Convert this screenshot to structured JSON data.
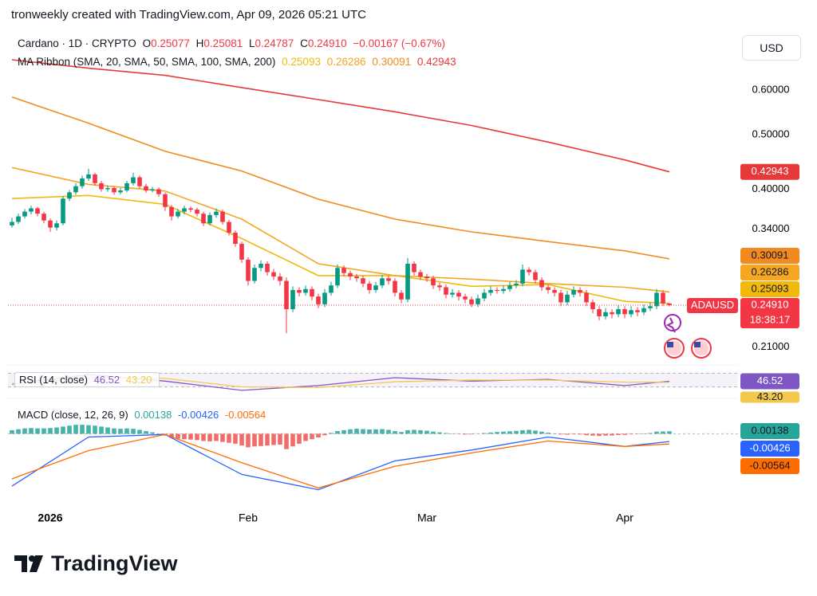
{
  "header": {
    "attribution": "tronweekly created with TradingView.com, Apr 09, 2026 05:21 UTC",
    "currency": "USD",
    "logo": "TradingView"
  },
  "chart_data": [
    {
      "type": "candlestick",
      "symbol": "Cardano · 1D · CRYPTO",
      "ohlc_labels": [
        "O",
        "H",
        "L",
        "C"
      ],
      "ohlc_values": [
        "0.25077",
        "0.25081",
        "0.24787",
        "0.24910"
      ],
      "change": "−0.00167 (−0.67%)",
      "ticker": "ADAUSD",
      "countdown": "18:38:17",
      "up_color": "#089981",
      "down_color": "#f23645",
      "log_scale": true,
      "ylim": [
        0.197,
        0.761
      ],
      "yticks": [
        {
          "value": 0.6,
          "label": "0.60000"
        },
        {
          "value": 0.5,
          "label": "0.50000"
        },
        {
          "value": 0.4,
          "label": "0.40000"
        },
        {
          "value": 0.34,
          "label": "0.34000"
        },
        {
          "value": 0.21,
          "label": "0.21000"
        }
      ],
      "xlim": [
        -0.625,
        113.75
      ],
      "xticks": [
        {
          "value": 6,
          "label": "2026"
        },
        {
          "value": 37,
          "label": "Feb"
        },
        {
          "value": 65,
          "label": "Mar"
        },
        {
          "value": 96,
          "label": "Apr"
        }
      ],
      "candles": [
        [
          0.345,
          0.356,
          0.342,
          0.35
        ],
        [
          0.35,
          0.362,
          0.347,
          0.358
        ],
        [
          0.358,
          0.369,
          0.355,
          0.365
        ],
        [
          0.365,
          0.374,
          0.361,
          0.37
        ],
        [
          0.37,
          0.372,
          0.358,
          0.362
        ],
        [
          0.362,
          0.365,
          0.348,
          0.352
        ],
        [
          0.352,
          0.355,
          0.336,
          0.342
        ],
        [
          0.342,
          0.352,
          0.338,
          0.348
        ],
        [
          0.348,
          0.389,
          0.345,
          0.385
        ],
        [
          0.385,
          0.399,
          0.381,
          0.395
        ],
        [
          0.395,
          0.41,
          0.391,
          0.405
        ],
        [
          0.405,
          0.423,
          0.401,
          0.418
        ],
        [
          0.418,
          0.435,
          0.414,
          0.425
        ],
        [
          0.425,
          0.428,
          0.406,
          0.41
        ],
        [
          0.41,
          0.414,
          0.396,
          0.4
        ],
        [
          0.4,
          0.406,
          0.396,
          0.402
        ],
        [
          0.402,
          0.405,
          0.391,
          0.395
        ],
        [
          0.395,
          0.402,
          0.392,
          0.398
        ],
        [
          0.398,
          0.414,
          0.395,
          0.41
        ],
        [
          0.41,
          0.428,
          0.406,
          0.42
        ],
        [
          0.42,
          0.423,
          0.401,
          0.405
        ],
        [
          0.405,
          0.409,
          0.394,
          0.398
        ],
        [
          0.398,
          0.404,
          0.395,
          0.4
        ],
        [
          0.4,
          0.403,
          0.388,
          0.392
        ],
        [
          0.392,
          0.395,
          0.366,
          0.372
        ],
        [
          0.372,
          0.375,
          0.352,
          0.358
        ],
        [
          0.358,
          0.369,
          0.355,
          0.365
        ],
        [
          0.365,
          0.374,
          0.361,
          0.37
        ],
        [
          0.37,
          0.373,
          0.364,
          0.368
        ],
        [
          0.368,
          0.371,
          0.358,
          0.362
        ],
        [
          0.362,
          0.365,
          0.344,
          0.348
        ],
        [
          0.348,
          0.364,
          0.345,
          0.36
        ],
        [
          0.36,
          0.37,
          0.356,
          0.365
        ],
        [
          0.365,
          0.368,
          0.346,
          0.35
        ],
        [
          0.35,
          0.353,
          0.331,
          0.335
        ],
        [
          0.335,
          0.338,
          0.316,
          0.32
        ],
        [
          0.32,
          0.323,
          0.296,
          0.3
        ],
        [
          0.3,
          0.303,
          0.27,
          0.275
        ],
        [
          0.275,
          0.294,
          0.272,
          0.29
        ],
        [
          0.29,
          0.299,
          0.286,
          0.295
        ],
        [
          0.295,
          0.298,
          0.281,
          0.285
        ],
        [
          0.285,
          0.289,
          0.276,
          0.28
        ],
        [
          0.28,
          0.284,
          0.27,
          0.275
        ],
        [
          0.275,
          0.279,
          0.222,
          0.245
        ],
        [
          0.245,
          0.269,
          0.242,
          0.265
        ],
        [
          0.265,
          0.268,
          0.258,
          0.262
        ],
        [
          0.262,
          0.27,
          0.259,
          0.266
        ],
        [
          0.266,
          0.269,
          0.254,
          0.258
        ],
        [
          0.258,
          0.261,
          0.246,
          0.25
        ],
        [
          0.25,
          0.266,
          0.247,
          0.262
        ],
        [
          0.262,
          0.274,
          0.259,
          0.27
        ],
        [
          0.27,
          0.294,
          0.267,
          0.29
        ],
        [
          0.29,
          0.293,
          0.28,
          0.284
        ],
        [
          0.284,
          0.287,
          0.276,
          0.28
        ],
        [
          0.28,
          0.283,
          0.274,
          0.278
        ],
        [
          0.278,
          0.281,
          0.268,
          0.272
        ],
        [
          0.272,
          0.275,
          0.261,
          0.265
        ],
        [
          0.265,
          0.274,
          0.262,
          0.27
        ],
        [
          0.27,
          0.282,
          0.267,
          0.278
        ],
        [
          0.278,
          0.281,
          0.271,
          0.275
        ],
        [
          0.275,
          0.278,
          0.258,
          0.262
        ],
        [
          0.262,
          0.265,
          0.251,
          0.255
        ],
        [
          0.255,
          0.302,
          0.252,
          0.295
        ],
        [
          0.295,
          0.298,
          0.281,
          0.285
        ],
        [
          0.285,
          0.288,
          0.276,
          0.28
        ],
        [
          0.28,
          0.283,
          0.274,
          0.278
        ],
        [
          0.278,
          0.281,
          0.266,
          0.27
        ],
        [
          0.27,
          0.273,
          0.264,
          0.268
        ],
        [
          0.268,
          0.271,
          0.256,
          0.26
        ],
        [
          0.26,
          0.266,
          0.257,
          0.262
        ],
        [
          0.262,
          0.265,
          0.254,
          0.258
        ],
        [
          0.258,
          0.261,
          0.251,
          0.255
        ],
        [
          0.255,
          0.258,
          0.247,
          0.25
        ],
        [
          0.25,
          0.26,
          0.247,
          0.256
        ],
        [
          0.256,
          0.266,
          0.253,
          0.262
        ],
        [
          0.262,
          0.269,
          0.259,
          0.265
        ],
        [
          0.265,
          0.268,
          0.261,
          0.264
        ],
        [
          0.264,
          0.27,
          0.261,
          0.266
        ],
        [
          0.266,
          0.274,
          0.263,
          0.27
        ],
        [
          0.27,
          0.276,
          0.267,
          0.272
        ],
        [
          0.272,
          0.294,
          0.269,
          0.288
        ],
        [
          0.288,
          0.291,
          0.281,
          0.285
        ],
        [
          0.285,
          0.288,
          0.272,
          0.276
        ],
        [
          0.276,
          0.279,
          0.264,
          0.268
        ],
        [
          0.268,
          0.271,
          0.261,
          0.265
        ],
        [
          0.265,
          0.268,
          0.258,
          0.262
        ],
        [
          0.262,
          0.265,
          0.248,
          0.252
        ],
        [
          0.252,
          0.264,
          0.249,
          0.26
        ],
        [
          0.26,
          0.269,
          0.257,
          0.265
        ],
        [
          0.265,
          0.268,
          0.258,
          0.262
        ],
        [
          0.262,
          0.265,
          0.248,
          0.252
        ],
        [
          0.252,
          0.255,
          0.241,
          0.245
        ],
        [
          0.245,
          0.248,
          0.234,
          0.238
        ],
        [
          0.238,
          0.246,
          0.235,
          0.242
        ],
        [
          0.242,
          0.245,
          0.236,
          0.24
        ],
        [
          0.24,
          0.249,
          0.237,
          0.245
        ],
        [
          0.245,
          0.248,
          0.236,
          0.24
        ],
        [
          0.24,
          0.248,
          0.237,
          0.244
        ],
        [
          0.244,
          0.247,
          0.238,
          0.242
        ],
        [
          0.242,
          0.25,
          0.239,
          0.246
        ],
        [
          0.246,
          0.252,
          0.243,
          0.248
        ],
        [
          0.248,
          0.266,
          0.245,
          0.262
        ],
        [
          0.262,
          0.265,
          0.248,
          0.2508
        ],
        [
          0.25077,
          0.25081,
          0.24787,
          0.2491
        ]
      ],
      "ribbon_label": "MA Ribbon (SMA, 20, SMA, 50, SMA, 100, SMA, 200)",
      "ma_x": [
        0,
        12,
        24,
        36,
        48,
        60,
        72,
        84,
        96,
        103
      ],
      "series": [
        {
          "color": "#f2b90c",
          "label_color": "#131722",
          "values": [
            0.385,
            0.39,
            0.376,
            0.327,
            0.281,
            0.281,
            0.269,
            0.271,
            0.253,
            0.25093
          ]
        },
        {
          "color": "#f5a623",
          "label_color": "#131722",
          "values": [
            0.437,
            0.408,
            0.397,
            0.354,
            0.295,
            0.281,
            0.277,
            0.272,
            0.268,
            0.26286
          ]
        },
        {
          "color": "#f28a1f",
          "label_color": "#131722",
          "values": [
            0.583,
            0.524,
            0.467,
            0.431,
            0.384,
            0.354,
            0.336,
            0.323,
            0.311,
            0.30091
          ]
        },
        {
          "color": "#e8393a",
          "label_color": "#ffffff",
          "values": [
            0.679,
            0.656,
            0.637,
            0.606,
            0.577,
            0.549,
            0.519,
            0.485,
            0.451,
            0.42943
          ]
        }
      ]
    },
    {
      "type": "line",
      "label": "RSI (14, close)",
      "x": [
        0,
        12,
        24,
        36,
        48,
        60,
        72,
        84,
        96,
        103
      ],
      "ylim": [
        15,
        85
      ],
      "band": [
        30,
        70
      ],
      "band_color": "#7e57c2",
      "series": [
        {
          "color": "#7e57c2",
          "values": [
            38,
            66,
            47,
            20,
            34,
            57,
            47,
            52,
            34,
            46.52
          ]
        },
        {
          "color": "#f2c94c",
          "last_label": "43.20",
          "values": [
            40,
            58,
            55,
            30,
            28,
            45,
            50,
            50,
            44,
            43.2
          ]
        }
      ]
    },
    {
      "type": "macd",
      "label": "MACD (close, 12, 26, 9)",
      "x": [
        0,
        12,
        24,
        36,
        48,
        60,
        72,
        84,
        96,
        103
      ],
      "ylim": [
        -0.04,
        0.013
      ],
      "histogram": {
        "pos_color": "#26a69a",
        "neg_color": "#ef5350",
        "values": [
          0.002,
          0.0025,
          0.003,
          0.0032,
          0.003,
          0.003,
          0.0032,
          0.0035,
          0.004,
          0.0045,
          0.005,
          0.005,
          0.0048,
          0.0045,
          0.004,
          0.0035,
          0.003,
          0.0028,
          0.003,
          0.0028,
          0.0022,
          0.0015,
          0.0008,
          0.0002,
          -0.001,
          -0.002,
          -0.0028,
          -0.003,
          -0.0032,
          -0.0035,
          -0.004,
          -0.0042,
          -0.004,
          -0.0045,
          -0.005,
          -0.0055,
          -0.0065,
          -0.0075,
          -0.007,
          -0.0068,
          -0.0065,
          -0.0062,
          -0.006,
          -0.0085,
          -0.007,
          -0.0055,
          -0.004,
          -0.003,
          -0.002,
          -0.0008,
          0.0005,
          0.0015,
          0.002,
          0.0025,
          0.0028,
          0.0026,
          0.0024,
          0.0025,
          0.0026,
          0.0022,
          0.0015,
          0.001,
          0.002,
          0.0022,
          0.002,
          0.0017,
          0.0012,
          0.0008,
          0.0004,
          0.0002,
          -0.0002,
          -0.0004,
          -0.0003,
          0.0001,
          0.0004,
          0.0007,
          0.001,
          0.0012,
          0.0014,
          0.0016,
          0.002,
          0.0022,
          0.0018,
          0.0012,
          0.0006,
          0.0002,
          -0.0004,
          -0.0005,
          -0.0003,
          -0.0004,
          -0.0008,
          -0.001,
          -0.0012,
          -0.001,
          -0.0009,
          -0.0007,
          -0.0006,
          -0.0003,
          -0.0002,
          0.0002,
          0.0004,
          0.0012,
          0.0013,
          0.00138
        ]
      },
      "series": [
        {
          "color": "#2962ff",
          "values": [
            -0.029,
            -0.0018,
            -0.0004,
            -0.0225,
            -0.031,
            -0.015,
            -0.009,
            -0.0018,
            -0.007,
            -0.00426
          ]
        },
        {
          "color": "#ff6d00",
          "values": [
            -0.025,
            -0.0093,
            -0.0004,
            -0.016,
            -0.03,
            -0.018,
            -0.0106,
            -0.004,
            -0.007,
            -0.00564
          ]
        }
      ]
    }
  ]
}
